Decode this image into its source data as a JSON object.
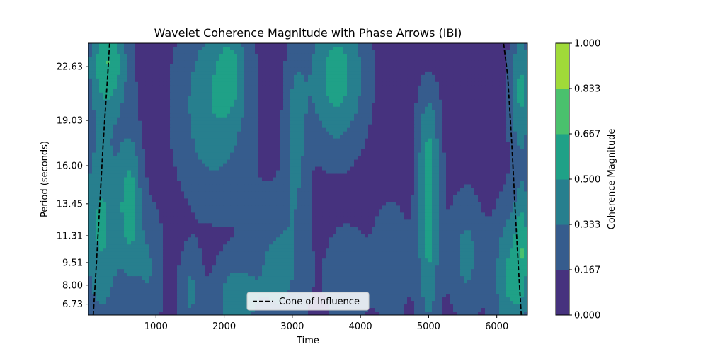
{
  "chart_data": {
    "type": "heatmap",
    "title": "Wavelet Coherence Magnitude with Phase Arrows (IBI)",
    "xlabel": "Time",
    "ylabel": "Period (seconds)",
    "xlim": [
      10,
      6450
    ],
    "ylim": [
      6.0,
      24.2
    ],
    "x_ticks": [
      1000,
      2000,
      3000,
      4000,
      5000,
      6000
    ],
    "y_ticks": [
      6.73,
      8.0,
      9.51,
      11.31,
      13.45,
      16.0,
      19.03,
      22.63
    ],
    "y_tick_labels": [
      "6.73",
      "8.00",
      "9.51",
      "11.31",
      "13.45",
      "16.00",
      "19.03",
      "22.63"
    ],
    "colorbar": {
      "label": "Coherence Magnitude",
      "levels": [
        0.0,
        0.167,
        0.333,
        0.5,
        0.667,
        0.833,
        1.0
      ],
      "level_labels": [
        "0.000",
        "0.167",
        "0.333",
        "0.500",
        "0.667",
        "0.833",
        "1.000"
      ],
      "colors": [
        "#46327e",
        "#365c8d",
        "#277f8e",
        "#1fa187",
        "#4ac16d",
        "#a0da39",
        "#cde11d"
      ]
    },
    "coherence_blobs": [
      {
        "x": 200,
        "y": 12.0,
        "sx": 200,
        "sy": 5.0,
        "a": 0.45
      },
      {
        "x": 300,
        "y": 23.0,
        "sx": 200,
        "sy": 2.5,
        "a": 0.55
      },
      {
        "x": 620,
        "y": 13.5,
        "sx": 120,
        "sy": 3.5,
        "a": 0.45
      },
      {
        "x": 900,
        "y": 9.0,
        "sx": 150,
        "sy": 3.0,
        "a": 0.25
      },
      {
        "x": 1500,
        "y": 7.5,
        "sx": 120,
        "sy": 2.0,
        "a": 0.28
      },
      {
        "x": 1850,
        "y": 20.0,
        "sx": 380,
        "sy": 4.5,
        "a": 0.4
      },
      {
        "x": 2100,
        "y": 22.5,
        "sx": 150,
        "sy": 2.0,
        "a": 0.25
      },
      {
        "x": 2150,
        "y": 7.0,
        "sx": 220,
        "sy": 1.8,
        "a": 0.35
      },
      {
        "x": 2800,
        "y": 9.0,
        "sx": 300,
        "sy": 3.5,
        "a": 0.3
      },
      {
        "x": 3050,
        "y": 18.0,
        "sx": 120,
        "sy": 4.0,
        "a": 0.3
      },
      {
        "x": 3650,
        "y": 22.0,
        "sx": 300,
        "sy": 3.5,
        "a": 0.5
      },
      {
        "x": 3800,
        "y": 8.5,
        "sx": 220,
        "sy": 2.5,
        "a": 0.22
      },
      {
        "x": 4450,
        "y": 9.5,
        "sx": 200,
        "sy": 3.0,
        "a": 0.22
      },
      {
        "x": 5000,
        "y": 11.5,
        "sx": 120,
        "sy": 5.0,
        "a": 0.45
      },
      {
        "x": 5000,
        "y": 18.0,
        "sx": 130,
        "sy": 2.5,
        "a": 0.22
      },
      {
        "x": 5550,
        "y": 10.0,
        "sx": 180,
        "sy": 3.0,
        "a": 0.3
      },
      {
        "x": 6200,
        "y": 8.5,
        "sx": 180,
        "sy": 3.5,
        "a": 0.45
      },
      {
        "x": 6350,
        "y": 21.0,
        "sx": 120,
        "sy": 3.0,
        "a": 0.45
      },
      {
        "x": 6380,
        "y": 11.0,
        "sx": 80,
        "sy": 3.0,
        "a": 0.35
      }
    ],
    "cone_of_influence": {
      "left": {
        "x": [
          80,
          120,
          170,
          225,
          290,
          320
        ],
        "y": [
          6.0,
          9.0,
          13.0,
          17.5,
          22.0,
          24.2
        ]
      },
      "right": {
        "x": [
          6360,
          6320,
          6270,
          6220,
          6160,
          6100
        ],
        "y": [
          6.0,
          9.0,
          13.0,
          17.5,
          22.0,
          24.2
        ]
      }
    },
    "legend": {
      "label": "Cone of Influence",
      "position": "lower center"
    }
  }
}
